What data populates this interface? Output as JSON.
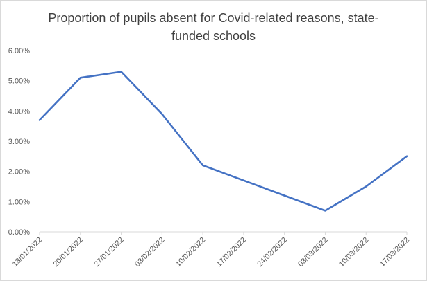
{
  "chart_data": {
    "type": "line",
    "title_lines": [
      "Proportion of pupils absent for Covid-related reasons, state-",
      "funded schools"
    ],
    "x": [
      "13/01/2022",
      "20/01/2022",
      "27/01/2022",
      "03/02/2022",
      "10/02/2022",
      "17/02/2022",
      "24/02/2022",
      "03/03/2022",
      "10/03/2022",
      "17/03/2022"
    ],
    "series": [
      {
        "values": [
          3.7,
          5.1,
          5.3,
          3.9,
          2.2,
          null,
          null,
          0.7,
          1.5,
          2.5
        ],
        "color": "#4472c4"
      }
    ],
    "y_ticks": [
      "0.00%",
      "1.00%",
      "2.00%",
      "3.00%",
      "4.00%",
      "5.00%",
      "6.00%"
    ],
    "ylim": [
      0,
      6
    ],
    "grid": false,
    "legend": "none"
  }
}
